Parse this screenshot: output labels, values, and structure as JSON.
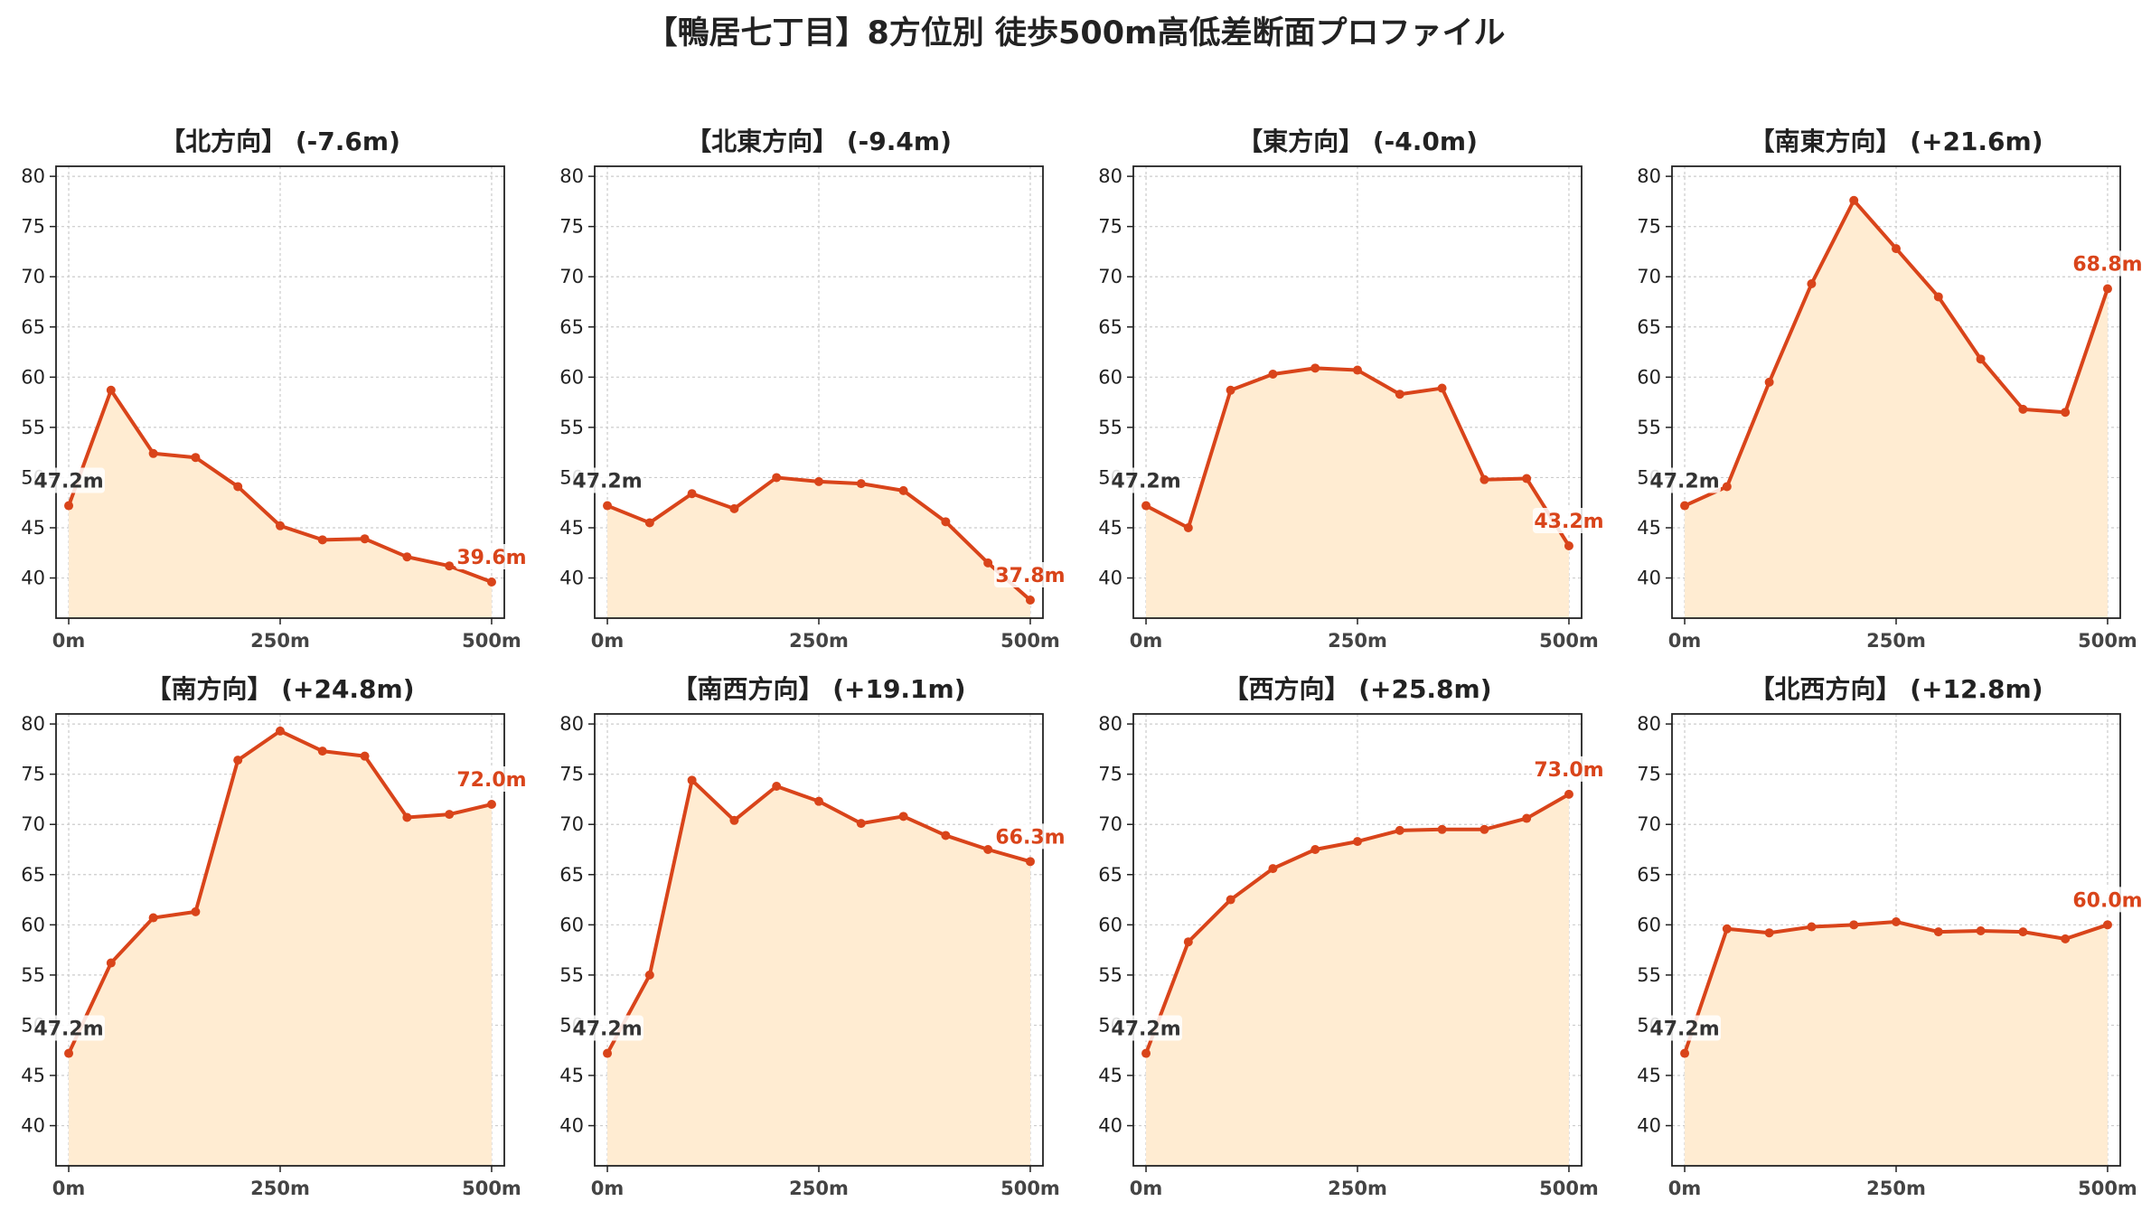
{
  "title": "【鴨居七丁目】8方位別 徒歩500m高低差断面プロファイル",
  "colors": {
    "line": "#d9441a",
    "fill": "#ffecd2",
    "start_label": "#333333",
    "grid": "#cccccc"
  },
  "chart_data": [
    {
      "type": "area",
      "title": "【北方向】 (-7.6m)",
      "x": [
        0,
        50,
        100,
        150,
        200,
        250,
        300,
        350,
        400,
        450,
        500
      ],
      "values": [
        47.2,
        58.7,
        52.4,
        52.0,
        49.1,
        45.2,
        43.8,
        43.9,
        42.1,
        41.2,
        39.6
      ],
      "start_label": "47.2m",
      "end_label": "39.6m"
    },
    {
      "type": "area",
      "title": "【北東方向】 (-9.4m)",
      "x": [
        0,
        50,
        100,
        150,
        200,
        250,
        300,
        350,
        400,
        450,
        500
      ],
      "values": [
        47.2,
        45.5,
        48.4,
        46.9,
        50.0,
        49.6,
        49.4,
        48.7,
        45.6,
        41.5,
        37.8
      ],
      "start_label": "47.2m",
      "end_label": "37.8m"
    },
    {
      "type": "area",
      "title": "【東方向】 (-4.0m)",
      "x": [
        0,
        50,
        100,
        150,
        200,
        250,
        300,
        350,
        400,
        450,
        500
      ],
      "values": [
        47.2,
        45.0,
        58.7,
        60.3,
        60.9,
        60.7,
        58.3,
        58.9,
        49.8,
        49.9,
        43.2
      ],
      "start_label": "47.2m",
      "end_label": "43.2m"
    },
    {
      "type": "area",
      "title": "【南東方向】 (+21.6m)",
      "x": [
        0,
        50,
        100,
        150,
        200,
        250,
        300,
        350,
        400,
        450,
        500
      ],
      "values": [
        47.2,
        49.1,
        59.5,
        69.3,
        77.6,
        72.8,
        68.0,
        61.8,
        56.8,
        56.5,
        68.8
      ],
      "start_label": "47.2m",
      "end_label": "68.8m"
    },
    {
      "type": "area",
      "title": "【南方向】 (+24.8m)",
      "x": [
        0,
        50,
        100,
        150,
        200,
        250,
        300,
        350,
        400,
        450,
        500
      ],
      "values": [
        47.2,
        56.2,
        60.7,
        61.3,
        76.4,
        79.3,
        77.3,
        76.8,
        70.7,
        71.0,
        72.0
      ],
      "start_label": "47.2m",
      "end_label": "72.0m"
    },
    {
      "type": "area",
      "title": "【南西方向】 (+19.1m)",
      "x": [
        0,
        50,
        100,
        150,
        200,
        250,
        300,
        350,
        400,
        450,
        500
      ],
      "values": [
        47.2,
        55.0,
        74.4,
        70.4,
        73.8,
        72.3,
        70.1,
        70.8,
        68.9,
        67.5,
        66.3
      ],
      "start_label": "47.2m",
      "end_label": "66.3m"
    },
    {
      "type": "area",
      "title": "【西方向】 (+25.8m)",
      "x": [
        0,
        50,
        100,
        150,
        200,
        250,
        300,
        350,
        400,
        450,
        500
      ],
      "values": [
        47.2,
        58.3,
        62.5,
        65.6,
        67.5,
        68.3,
        69.4,
        69.5,
        69.5,
        70.6,
        73.0
      ],
      "start_label": "47.2m",
      "end_label": "73.0m"
    },
    {
      "type": "area",
      "title": "【北西方向】 (+12.8m)",
      "x": [
        0,
        50,
        100,
        150,
        200,
        250,
        300,
        350,
        400,
        450,
        500
      ],
      "values": [
        47.2,
        59.6,
        59.2,
        59.8,
        60.0,
        60.3,
        59.3,
        59.4,
        59.3,
        58.6,
        60.0
      ],
      "start_label": "47.2m",
      "end_label": "60.0m"
    }
  ],
  "y_ticks": [
    40,
    45,
    50,
    55,
    60,
    65,
    70,
    75,
    80
  ],
  "ylim": [
    36,
    81
  ],
  "x_ticks": [
    {
      "value": 0,
      "label": "0m"
    },
    {
      "value": 250,
      "label": "250m"
    },
    {
      "value": 500,
      "label": "500m"
    }
  ],
  "xlim": [
    -15,
    515
  ],
  "grid": true
}
